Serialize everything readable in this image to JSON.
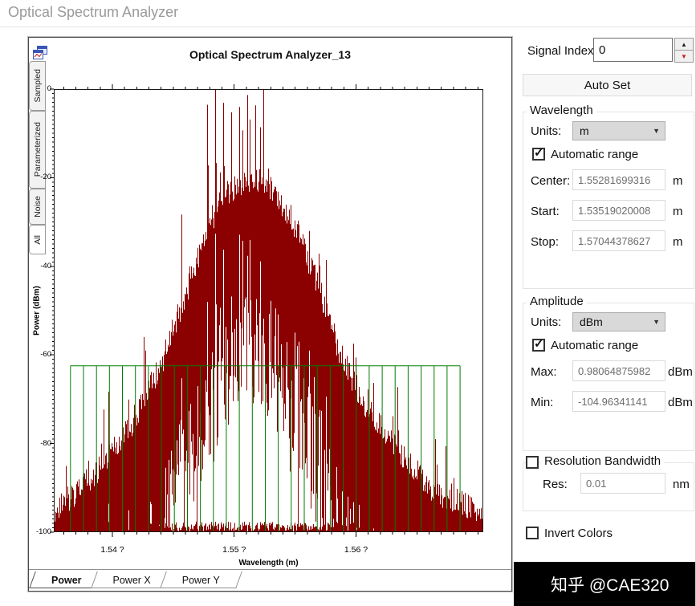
{
  "window": {
    "title": "Optical Spectrum Analyzer"
  },
  "icons": {
    "dropdown_arrow": "▼",
    "spin_up_arrow": "▲",
    "spin_down_arrow": "▼",
    "checkmark": "✓"
  },
  "osa": {
    "title": "Optical Spectrum Analyzer_13",
    "side_tabs": [
      {
        "label": "Sampled",
        "selected": false
      },
      {
        "label": "Parameterized",
        "selected": false
      },
      {
        "label": "Noise",
        "selected": false
      },
      {
        "label": "All",
        "selected": true
      }
    ],
    "bottom_tabs": [
      {
        "label": "Power",
        "selected": true
      },
      {
        "label": "Power X",
        "selected": false
      },
      {
        "label": "Power Y",
        "selected": false
      }
    ]
  },
  "controls": {
    "signal_index": {
      "label": "Signal Index:",
      "value": "0"
    },
    "auto_set": {
      "label": "Auto Set"
    },
    "wavelength": {
      "title": "Wavelength",
      "units_label": "Units:",
      "units_value": "m",
      "auto_range": {
        "label": "Automatic range",
        "checked": true
      },
      "center": {
        "label": "Center:",
        "value": "1.55281699316",
        "unit": "m"
      },
      "start": {
        "label": "Start:",
        "value": "1.53519020008",
        "unit": "m"
      },
      "stop": {
        "label": "Stop:",
        "value": "1.57044378627",
        "unit": "m"
      }
    },
    "amplitude": {
      "title": "Amplitude",
      "units_label": "Units:",
      "units_value": "dBm",
      "auto_range": {
        "label": "Automatic range",
        "checked": true
      },
      "max": {
        "label": "Max:",
        "value": "0.98064875982",
        "unit": "dBm"
      },
      "min": {
        "label": "Min:",
        "value": "-104.96341141",
        "unit": "dBm"
      }
    },
    "resolution_bandwidth": {
      "title": "Resolution Bandwidth",
      "checked": false,
      "res": {
        "label": "Res:",
        "value": "0.01",
        "unit": "nm"
      }
    },
    "invert_colors": {
      "label": "Invert Colors",
      "checked": false
    }
  },
  "watermark": {
    "text": "知乎 @CAE320"
  },
  "chart_data": {
    "type": "line",
    "title": "Optical Spectrum Analyzer_13",
    "xlabel": "Wavelength (m)",
    "ylabel": "Power (dBm)",
    "x_unit": "micrometers",
    "xlim": [
      1.53519020008,
      1.57044378627
    ],
    "ylim": [
      -100,
      0
    ],
    "x_minor_tick_step": 0.001,
    "y_minor_tick_step": 1,
    "x_ticks": [
      {
        "value": 1.54,
        "label": "1.54 ?"
      },
      {
        "value": 1.55,
        "label": "1.55 ?"
      },
      {
        "value": 1.56,
        "label": "1.56 ?"
      }
    ],
    "y_ticks": [
      {
        "value": 0,
        "label": "0"
      },
      {
        "value": -20,
        "label": "-20"
      },
      {
        "value": -40,
        "label": "-40"
      },
      {
        "value": -60,
        "label": "-60"
      },
      {
        "value": -80,
        "label": "-80"
      },
      {
        "value": -100,
        "label": "-100"
      }
    ],
    "series": [
      {
        "name": "optical-signal-spectrum",
        "color": "#8b0000",
        "peak_power_dBm": 0,
        "noise_floor_dBm": -100,
        "envelope_dB": [
          [
            1.53519,
            -96
          ],
          [
            1.5385,
            -87
          ],
          [
            1.5415,
            -76
          ],
          [
            1.544,
            -62
          ],
          [
            1.5455,
            -50
          ],
          [
            1.5468,
            -40
          ],
          [
            1.548,
            -30
          ],
          [
            1.5492,
            -24
          ],
          [
            1.5505,
            -21
          ],
          [
            1.552,
            -20
          ],
          [
            1.5532,
            -23
          ],
          [
            1.5544,
            -28
          ],
          [
            1.5556,
            -35
          ],
          [
            1.557,
            -45
          ],
          [
            1.5585,
            -58
          ],
          [
            1.5605,
            -70
          ],
          [
            1.5635,
            -82
          ],
          [
            1.5665,
            -91
          ],
          [
            1.57045,
            -96
          ]
        ],
        "channels": {
          "first": 1.5478,
          "spacing": 0.00066,
          "count": 8,
          "peak_dB": 0
        }
      },
      {
        "name": "channel-grid-overlay",
        "color": "#007d00",
        "comb": {
          "first": 1.5365,
          "spacing": 0.00107,
          "count": 31,
          "top_dB": -62.5,
          "bottom_dB": -100
        }
      }
    ]
  }
}
